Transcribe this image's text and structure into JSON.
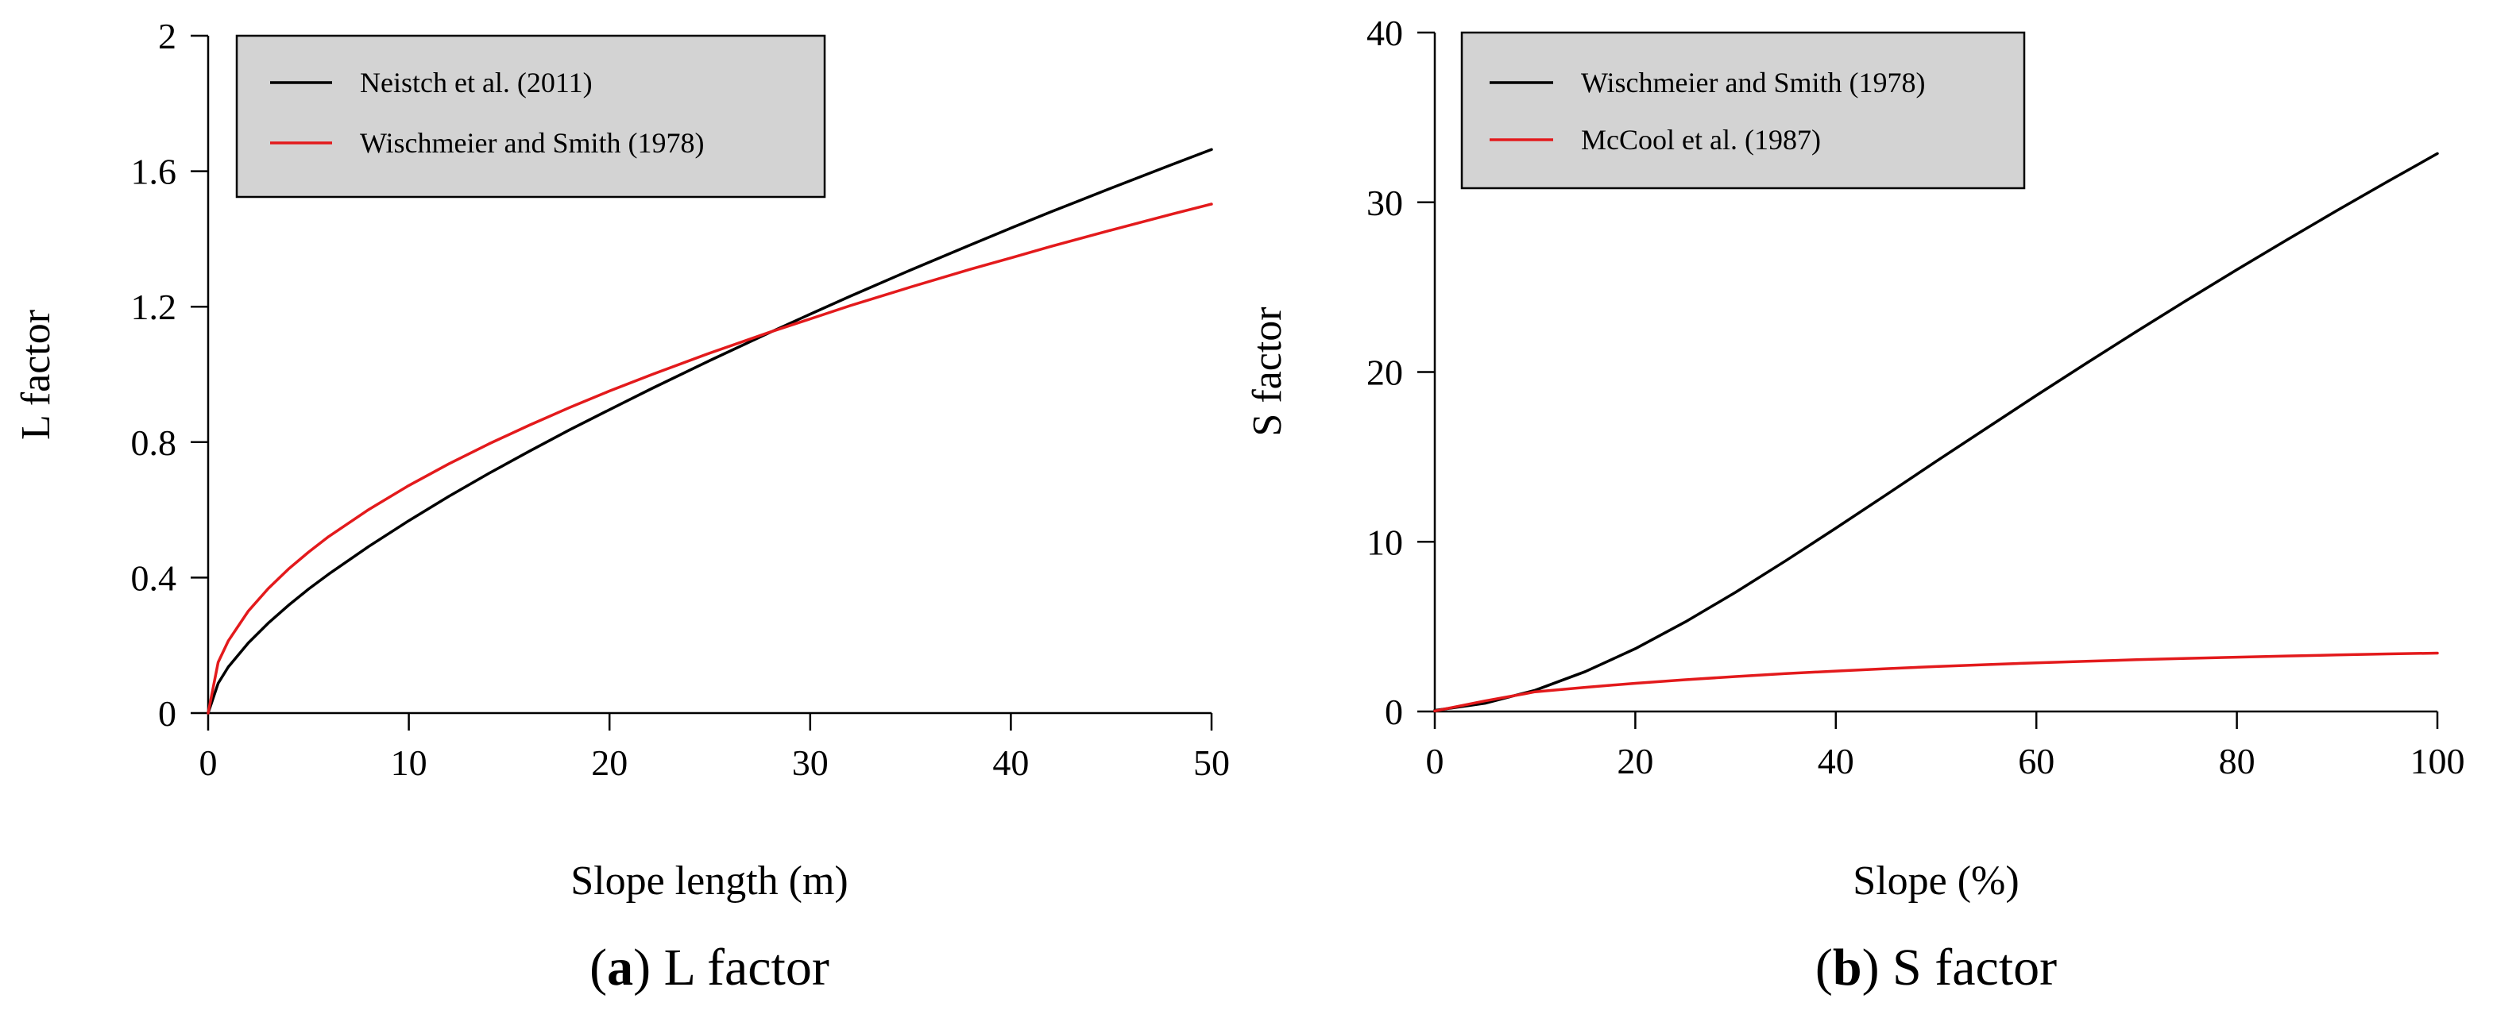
{
  "chart_data": [
    {
      "type": "line",
      "caption_open": "(",
      "caption_letter": "a",
      "caption_rest": ") L factor",
      "xlabel": "Slope length (m)",
      "ylabel": "L factor",
      "xlim": [
        0,
        50
      ],
      "ylim": [
        0,
        2
      ],
      "xticks": [
        0,
        10,
        20,
        30,
        40,
        50
      ],
      "yticks": [
        0,
        0.4,
        0.8,
        1.2,
        1.6,
        2
      ],
      "xtick_labels": [
        "0",
        "10",
        "20",
        "30",
        "40",
        "50"
      ],
      "ytick_labels": [
        "0",
        "0.4",
        "0.8",
        "1.2",
        "1.6",
        "2"
      ],
      "legend_position": "top-left",
      "series": [
        {
          "name": "Neistch et al. (2011)",
          "color": "#000000",
          "x": [
            0,
            0.5,
            1,
            2,
            3,
            4,
            5,
            6,
            8,
            10,
            12,
            14,
            16,
            18,
            20,
            22.13,
            25,
            28,
            30,
            32,
            35,
            38,
            40,
            42,
            45,
            48,
            50
          ],
          "y": [
            0,
            0.088,
            0.136,
            0.207,
            0.266,
            0.318,
            0.366,
            0.41,
            0.492,
            0.568,
            0.64,
            0.708,
            0.773,
            0.836,
            0.896,
            0.959,
            1.041,
            1.124,
            1.178,
            1.231,
            1.308,
            1.383,
            1.432,
            1.48,
            1.55,
            1.619,
            1.664
          ]
        },
        {
          "name": "Wischmeier and Smith (1978)",
          "color": "#e31a1c",
          "x": [
            0,
            0.5,
            1,
            2,
            3,
            4,
            5,
            6,
            8,
            10,
            12,
            14,
            16,
            18,
            20,
            22.13,
            25,
            28,
            30,
            32,
            35,
            38,
            40,
            42,
            45,
            48,
            50
          ],
          "y": [
            0,
            0.15,
            0.213,
            0.301,
            0.368,
            0.425,
            0.475,
            0.521,
            0.601,
            0.672,
            0.736,
            0.795,
            0.85,
            0.902,
            0.951,
            1.0,
            1.063,
            1.125,
            1.164,
            1.203,
            1.258,
            1.311,
            1.344,
            1.378,
            1.426,
            1.473,
            1.503
          ]
        }
      ]
    },
    {
      "type": "line",
      "caption_open": "(",
      "caption_letter": "b",
      "caption_rest": ") S factor",
      "xlabel": "Slope (%)",
      "ylabel": "S factor",
      "xlim": [
        0,
        100
      ],
      "ylim": [
        0,
        40
      ],
      "xticks": [
        0,
        20,
        40,
        60,
        80,
        100
      ],
      "yticks": [
        0,
        10,
        20,
        30,
        40
      ],
      "xtick_labels": [
        "0",
        "20",
        "40",
        "60",
        "80",
        "100"
      ],
      "ytick_labels": [
        "0",
        "10",
        "20",
        "30",
        "40"
      ],
      "legend_position": "top-left",
      "series": [
        {
          "name": "Wischmeier and Smith (1978)",
          "color": "#000000",
          "x": [
            0,
            5,
            10,
            15,
            20,
            25,
            30,
            35,
            40,
            45,
            50,
            55,
            60,
            65,
            70,
            75,
            80,
            85,
            90,
            95,
            100
          ],
          "y": [
            0.065,
            0.48,
            1.25,
            2.35,
            3.7,
            5.28,
            7.02,
            8.88,
            10.8,
            12.76,
            14.73,
            16.68,
            18.62,
            20.52,
            22.39,
            24.23,
            26.03,
            27.79,
            29.52,
            31.21,
            32.87
          ]
        },
        {
          "name": "McCool et al. (1987)",
          "color": "#e31a1c",
          "x": [
            0,
            5,
            9,
            10,
            15,
            20,
            25,
            30,
            35,
            40,
            45,
            50,
            55,
            60,
            65,
            70,
            75,
            80,
            85,
            90,
            95,
            100
          ],
          "y": [
            0.03,
            0.62,
            1.05,
            1.16,
            1.42,
            1.66,
            1.87,
            2.06,
            2.23,
            2.38,
            2.52,
            2.65,
            2.76,
            2.87,
            2.96,
            3.05,
            3.13,
            3.2,
            3.27,
            3.33,
            3.39,
            3.44
          ]
        }
      ]
    }
  ]
}
